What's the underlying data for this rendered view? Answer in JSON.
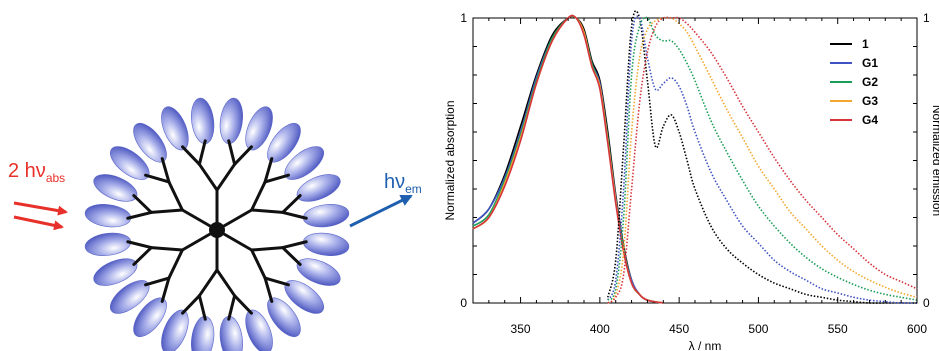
{
  "scheme": {
    "absorption_label": {
      "prefix": "2 hν",
      "sub": "abs"
    },
    "emission_label": {
      "prefix": "hν",
      "sub": "em"
    },
    "colors": {
      "absorption_arrow": "#e8302a",
      "emission_arrow": "#1f5fb0",
      "dendron": "#111111",
      "periphery": "#5b66c8"
    }
  },
  "chart_data": {
    "type": "line",
    "xlabel": "λ / nm",
    "ylabel_left": "Normalized absorption",
    "ylabel_right": "Normalized emission",
    "xlim": [
      320,
      600
    ],
    "ylim": [
      0,
      1
    ],
    "x_ticks": [
      350,
      400,
      450,
      500,
      550,
      600
    ],
    "y_ticks_left": [
      "0",
      "1"
    ],
    "y_ticks_right": [
      "0",
      "1"
    ],
    "legend_position": "top-right",
    "absorption_x": [
      320,
      330,
      340,
      350,
      360,
      370,
      380,
      385,
      390,
      395,
      400,
      405,
      410,
      415,
      420,
      425,
      430,
      440
    ],
    "emission_x": [
      405,
      410,
      415,
      420,
      425,
      430,
      435,
      440,
      445,
      450,
      455,
      460,
      470,
      480,
      490,
      500,
      510,
      520,
      530,
      540,
      550,
      560,
      570,
      580,
      590,
      600
    ],
    "series": [
      {
        "name": "1",
        "color": "#000000",
        "absorption": [
          0.28,
          0.33,
          0.45,
          0.62,
          0.8,
          0.94,
          1.0,
          1.0,
          0.96,
          0.85,
          0.78,
          0.6,
          0.38,
          0.2,
          0.08,
          0.03,
          0.01,
          0.0
        ],
        "emission": [
          0.02,
          0.15,
          0.55,
          0.97,
          1.0,
          0.78,
          0.55,
          0.62,
          0.66,
          0.6,
          0.5,
          0.4,
          0.27,
          0.19,
          0.14,
          0.1,
          0.07,
          0.05,
          0.03,
          0.02,
          0.01,
          0.005,
          0.0,
          0.0,
          0.0,
          0.0
        ]
      },
      {
        "name": "G1",
        "color": "#3f53c4",
        "absorption": [
          0.28,
          0.33,
          0.44,
          0.6,
          0.79,
          0.93,
          1.0,
          1.0,
          0.95,
          0.84,
          0.77,
          0.58,
          0.37,
          0.19,
          0.08,
          0.03,
          0.01,
          0.0
        ],
        "emission": [
          0.01,
          0.08,
          0.4,
          0.92,
          1.0,
          0.86,
          0.75,
          0.77,
          0.79,
          0.76,
          0.69,
          0.6,
          0.46,
          0.36,
          0.27,
          0.21,
          0.15,
          0.11,
          0.08,
          0.05,
          0.035,
          0.02,
          0.01,
          0.005,
          0.0,
          0.0
        ]
      },
      {
        "name": "G2",
        "color": "#1c9e58",
        "absorption": [
          0.27,
          0.31,
          0.43,
          0.59,
          0.78,
          0.93,
          1.0,
          1.0,
          0.95,
          0.84,
          0.76,
          0.58,
          0.36,
          0.19,
          0.07,
          0.03,
          0.01,
          0.0
        ],
        "emission": [
          0.01,
          0.05,
          0.3,
          0.8,
          0.97,
          1.0,
          0.94,
          0.92,
          0.92,
          0.89,
          0.84,
          0.78,
          0.64,
          0.53,
          0.43,
          0.34,
          0.27,
          0.21,
          0.16,
          0.12,
          0.09,
          0.065,
          0.045,
          0.03,
          0.02,
          0.01
        ]
      },
      {
        "name": "G3",
        "color": "#f2a72e",
        "absorption": [
          0.26,
          0.3,
          0.42,
          0.58,
          0.77,
          0.92,
          1.0,
          1.0,
          0.95,
          0.83,
          0.76,
          0.57,
          0.36,
          0.18,
          0.07,
          0.03,
          0.01,
          0.0
        ],
        "emission": [
          0.0,
          0.03,
          0.18,
          0.6,
          0.86,
          0.96,
          0.99,
          1.0,
          1.0,
          0.98,
          0.95,
          0.9,
          0.79,
          0.68,
          0.58,
          0.48,
          0.4,
          0.32,
          0.26,
          0.2,
          0.15,
          0.11,
          0.08,
          0.055,
          0.035,
          0.02
        ]
      },
      {
        "name": "G4",
        "color": "#d6343c",
        "absorption": [
          0.26,
          0.3,
          0.41,
          0.57,
          0.77,
          0.92,
          1.0,
          1.0,
          0.94,
          0.83,
          0.75,
          0.56,
          0.35,
          0.18,
          0.07,
          0.03,
          0.01,
          0.0
        ],
        "emission": [
          0.0,
          0.02,
          0.1,
          0.4,
          0.7,
          0.88,
          0.97,
          1.0,
          1.0,
          1.0,
          0.98,
          0.95,
          0.88,
          0.79,
          0.69,
          0.6,
          0.51,
          0.43,
          0.36,
          0.3,
          0.24,
          0.19,
          0.14,
          0.1,
          0.075,
          0.05
        ]
      }
    ]
  }
}
